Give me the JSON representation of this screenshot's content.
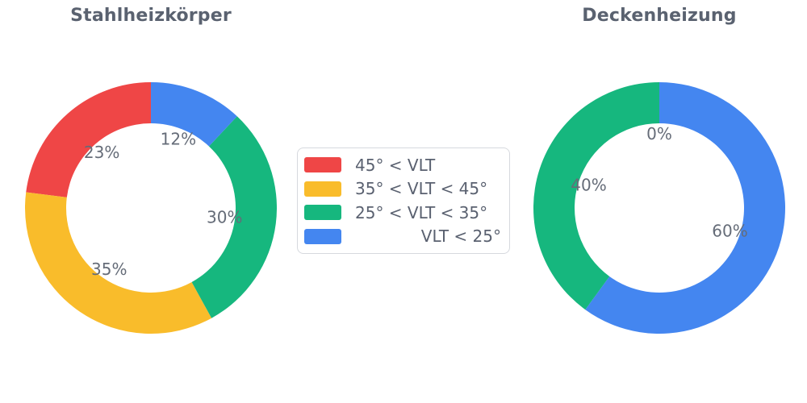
{
  "figure": {
    "background": "#ffffff",
    "text_colors": {
      "title": "#5a6270",
      "slice_label": "#656c78",
      "legend_label": "#5a6170"
    },
    "legend_border_color": "#d6d9de"
  },
  "legend": {
    "position": "center-between-charts",
    "items": [
      {
        "label": "45° < VLT",
        "color": "#ef4646"
      },
      {
        "label": "35° < VLT < 45°",
        "color": "#f9bc2b"
      },
      {
        "label": "25° < VLT < 35°",
        "color": "#16b77e"
      },
      {
        "label": "VLT < 25°",
        "color": "#4486f0"
      }
    ]
  },
  "chart_data": [
    {
      "type": "pie",
      "subtype": "donut",
      "title": "Stahlheizkörper",
      "categories": [
        "45° < VLT",
        "35° < VLT < 45°",
        "25° < VLT < 35°",
        "VLT < 25°"
      ],
      "values": [
        23,
        35,
        30,
        12
      ],
      "value_unit": "%",
      "slice_labels": [
        "23%",
        "35%",
        "30%",
        "12%"
      ],
      "colors": [
        "#ef4646",
        "#f9bc2b",
        "#16b77e",
        "#4486f0"
      ],
      "start_angle": 90,
      "counterclockwise": true,
      "hole_ratio": 0.67,
      "legend": "shared"
    },
    {
      "type": "pie",
      "subtype": "donut",
      "title": "Deckenheizung",
      "categories": [
        "45° < VLT",
        "35° < VLT < 45°",
        "25° < VLT < 35°",
        "VLT < 25°"
      ],
      "values": [
        0,
        0,
        40,
        60
      ],
      "value_unit": "%",
      "slice_labels": [
        "0%",
        "",
        "40%",
        "60%"
      ],
      "colors": [
        "#ef4646",
        "#f9bc2b",
        "#16b77e",
        "#4486f0"
      ],
      "start_angle": 90,
      "counterclockwise": true,
      "hole_ratio": 0.67,
      "legend": "shared"
    }
  ]
}
